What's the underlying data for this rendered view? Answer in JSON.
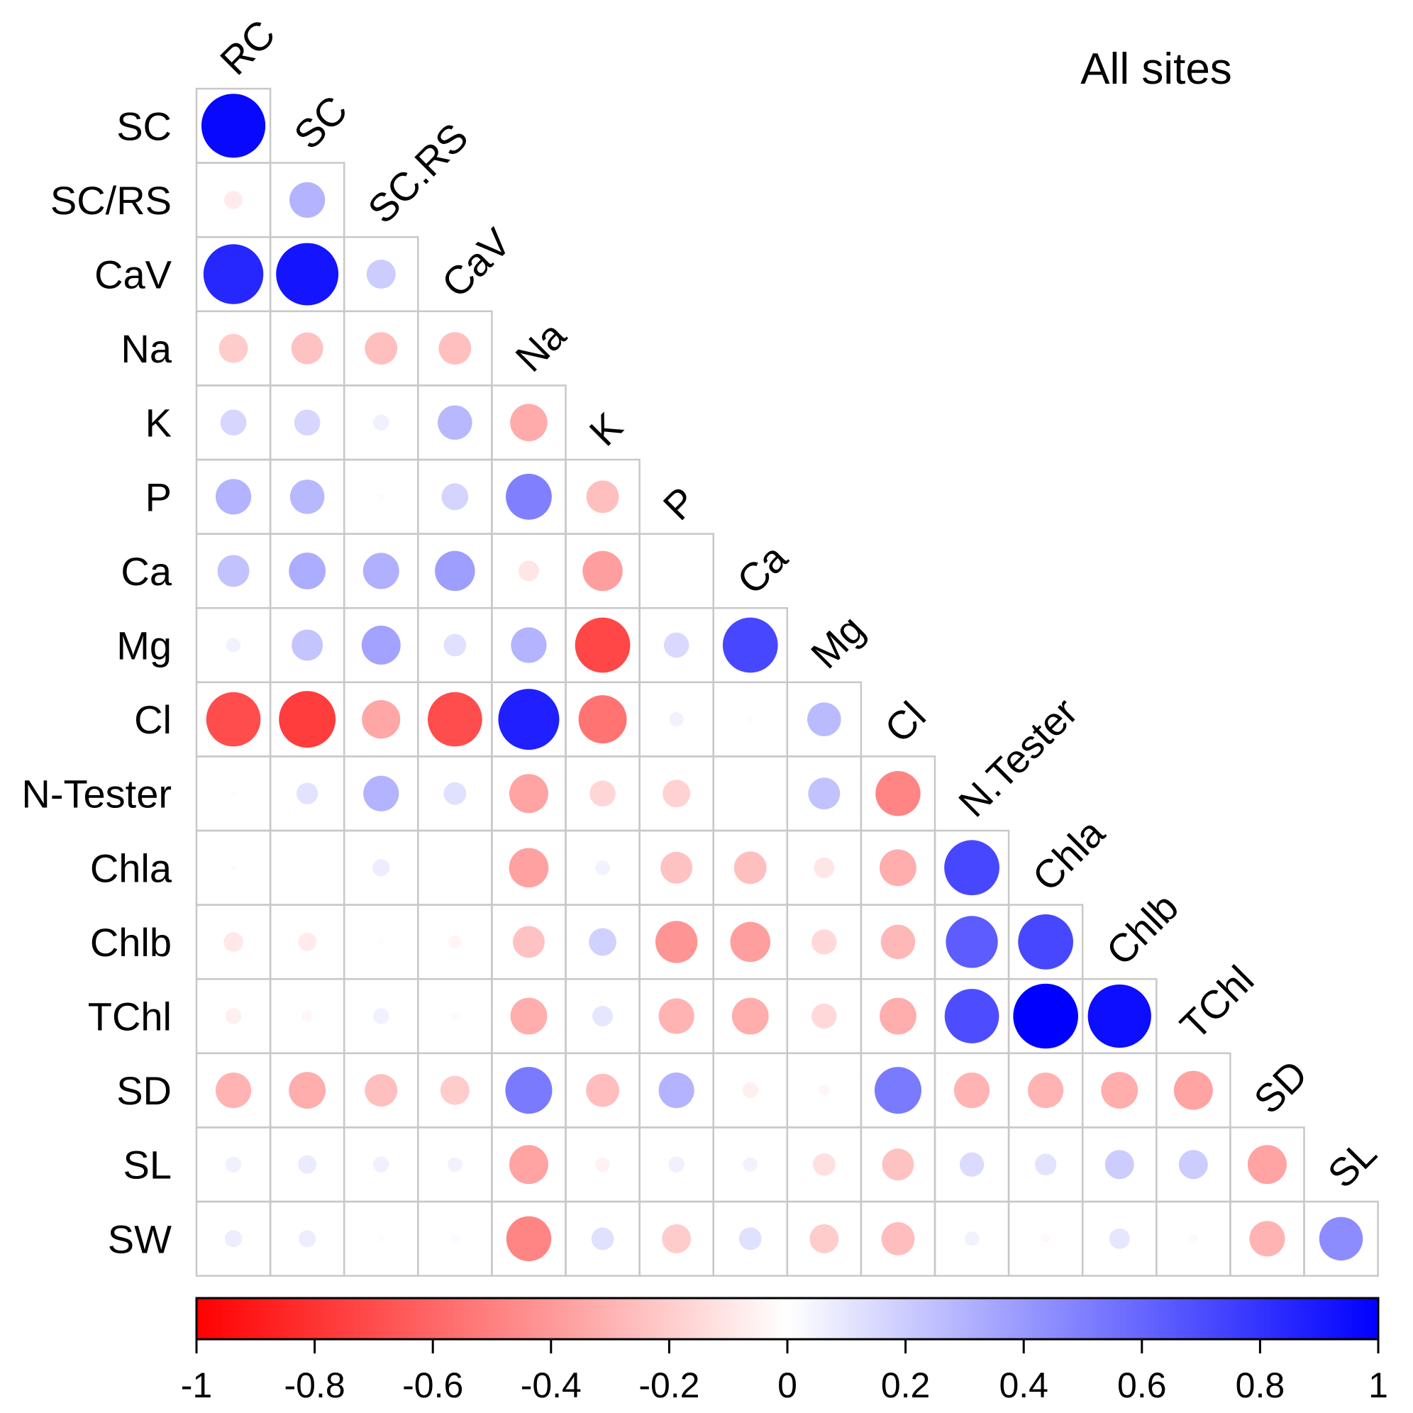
{
  "chart_data": {
    "type": "heatmap",
    "subtype": "correlogram-lower-triangle-circles",
    "title": "All sites",
    "column_labels": [
      "RC",
      "SC",
      "SC.RS",
      "CaV",
      "Na",
      "K",
      "P",
      "Ca",
      "Mg",
      "Cl",
      "N.Tester",
      "Chla",
      "Chlb",
      "TChl",
      "SD",
      "SL"
    ],
    "row_labels": [
      "SC",
      "SC/RS",
      "CaV",
      "Na",
      "K",
      "P",
      "Ca",
      "Mg",
      "Cl",
      "N-Tester",
      "Chla",
      "Chlb",
      "TChl",
      "SD",
      "SL",
      "SW"
    ],
    "values": [
      [
        0.97
      ],
      [
        -0.08,
        0.3
      ],
      [
        0.85,
        0.92,
        0.2
      ],
      [
        -0.2,
        -0.24,
        -0.25,
        -0.25
      ],
      [
        0.16,
        0.16,
        0.06,
        0.28,
        -0.33
      ],
      [
        0.3,
        0.28,
        0.01,
        0.17,
        0.5,
        -0.25
      ],
      [
        0.24,
        0.32,
        0.31,
        0.38,
        -0.1,
        -0.38
      ],
      [
        0.05,
        0.23,
        0.36,
        0.12,
        0.3,
        -0.72,
        0.15,
        0.72
      ],
      [
        -0.7,
        -0.76,
        -0.35,
        -0.7,
        0.88,
        -0.55,
        0.05,
        0.01,
        0.27
      ],
      [
        0.01,
        0.11,
        0.3,
        0.12,
        -0.36,
        -0.16,
        -0.18,
        null,
        0.24,
        -0.48
      ],
      [
        0.01,
        null,
        0.07,
        null,
        -0.37,
        0.05,
        -0.24,
        -0.25,
        -0.1,
        -0.32,
        0.72
      ],
      [
        -0.09,
        -0.08,
        0.01,
        -0.04,
        -0.24,
        0.18,
        -0.42,
        -0.38,
        -0.15,
        -0.28,
        0.64,
        0.72
      ],
      [
        -0.06,
        -0.03,
        0.06,
        0.02,
        -0.32,
        0.1,
        -0.3,
        -0.32,
        -0.15,
        -0.32,
        0.7,
        1.0,
        0.95
      ],
      [
        -0.3,
        -0.32,
        -0.25,
        -0.2,
        0.52,
        -0.26,
        0.3,
        -0.06,
        -0.03,
        0.52,
        -0.3,
        -0.3,
        -0.32,
        -0.36
      ],
      [
        0.06,
        0.08,
        0.06,
        0.05,
        -0.36,
        -0.05,
        0.06,
        0.05,
        -0.12,
        -0.24,
        0.14,
        0.11,
        0.2,
        0.2,
        -0.36
      ],
      [
        0.07,
        0.07,
        0.01,
        0.02,
        -0.48,
        0.12,
        -0.2,
        0.12,
        -0.2,
        -0.26,
        0.05,
        -0.02,
        0.1,
        0.02,
        -0.3,
        0.45
      ]
    ],
    "value_range": [
      -1,
      1
    ],
    "colorbar_ticks": [
      "-1",
      "-0.8",
      "-0.6",
      "-0.4",
      "-0.2",
      "0",
      "0.2",
      "0.4",
      "0.6",
      "0.8",
      "1"
    ],
    "color_low": "#ff0000",
    "color_mid": "#ffffff",
    "color_high": "#0000ff",
    "grid": true,
    "legend_placement": "bottom"
  }
}
